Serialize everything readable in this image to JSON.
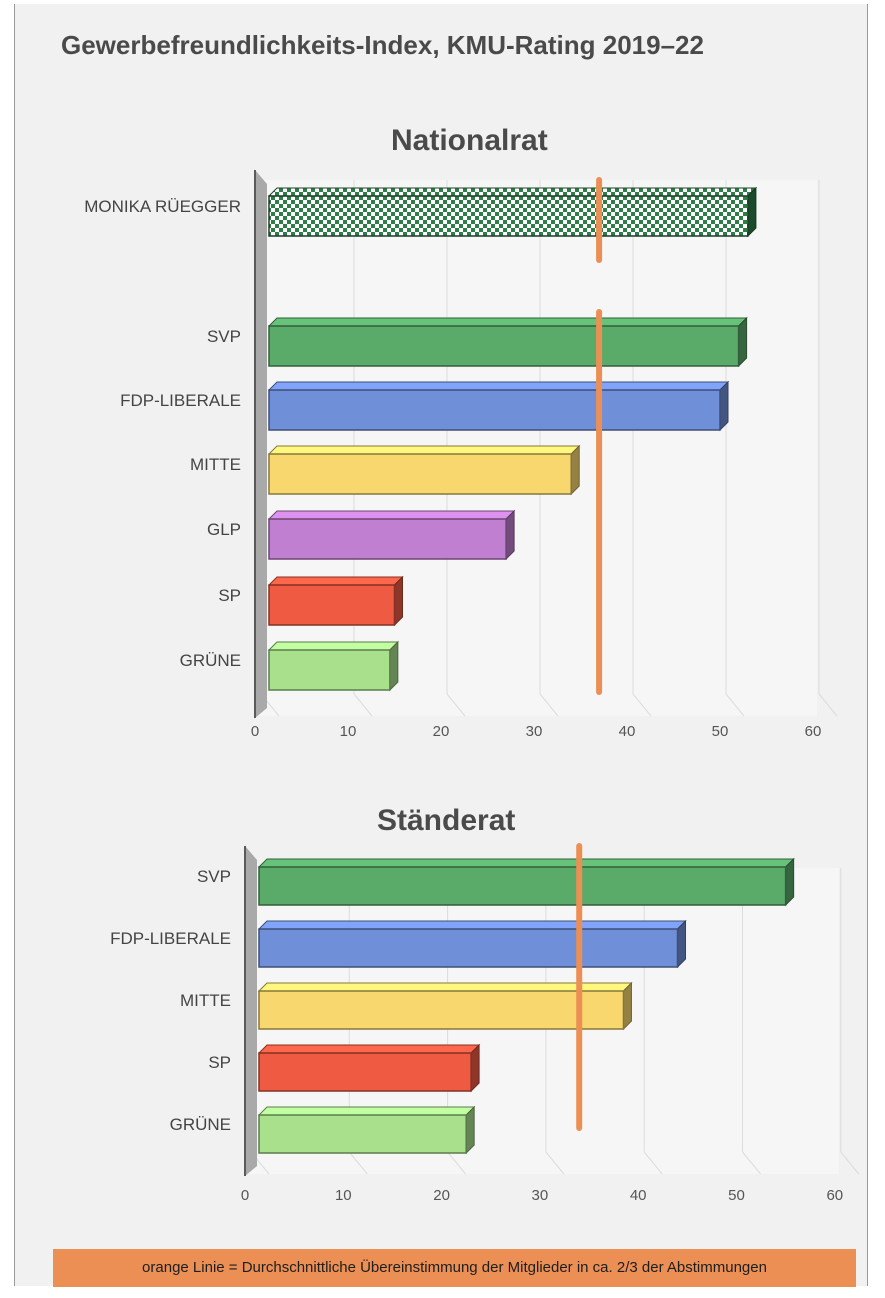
{
  "title": "Gewerbefreundlichkeits-Index, KMU-Rating 2019–22",
  "footer_note": "orange Linie = Durchschnittliche Übereinstimmung der Mitglieder in ca. 2/3 der Abstimmungen",
  "colors": {
    "svp": "#5aaa6a",
    "fdp": "#6f8fd9",
    "mitte": "#f8d86e",
    "glp": "#c07fd0",
    "sp": "#ef5a42",
    "gruene": "#a8e08c",
    "highlight": "#2f7d46",
    "average_line": "#ec8f54"
  },
  "chart_data": [
    {
      "type": "bar",
      "orientation": "horizontal",
      "title": "Nationalrat",
      "categories": [
        "MONIKA RÜEGGER",
        "SVP",
        "FDP-LIBERALE",
        "MITTE",
        "GLP",
        "SP",
        "GRÜNE"
      ],
      "values": [
        53,
        52,
        50,
        34,
        27,
        15,
        14.5
      ],
      "xlim": [
        0,
        60
      ],
      "xticks": [
        0,
        10,
        20,
        30,
        40,
        50,
        60
      ],
      "reference_line": 37
    },
    {
      "type": "bar",
      "orientation": "horizontal",
      "title": "Ständerat",
      "categories": [
        "SVP",
        "FDP-LIBERALE",
        "MITTE",
        "SP",
        "GRÜNE"
      ],
      "values": [
        55,
        44,
        38.5,
        23,
        22.5
      ],
      "xlim": [
        0,
        60
      ],
      "xticks": [
        0,
        10,
        20,
        30,
        40,
        50,
        60
      ],
      "reference_line": 34
    }
  ]
}
